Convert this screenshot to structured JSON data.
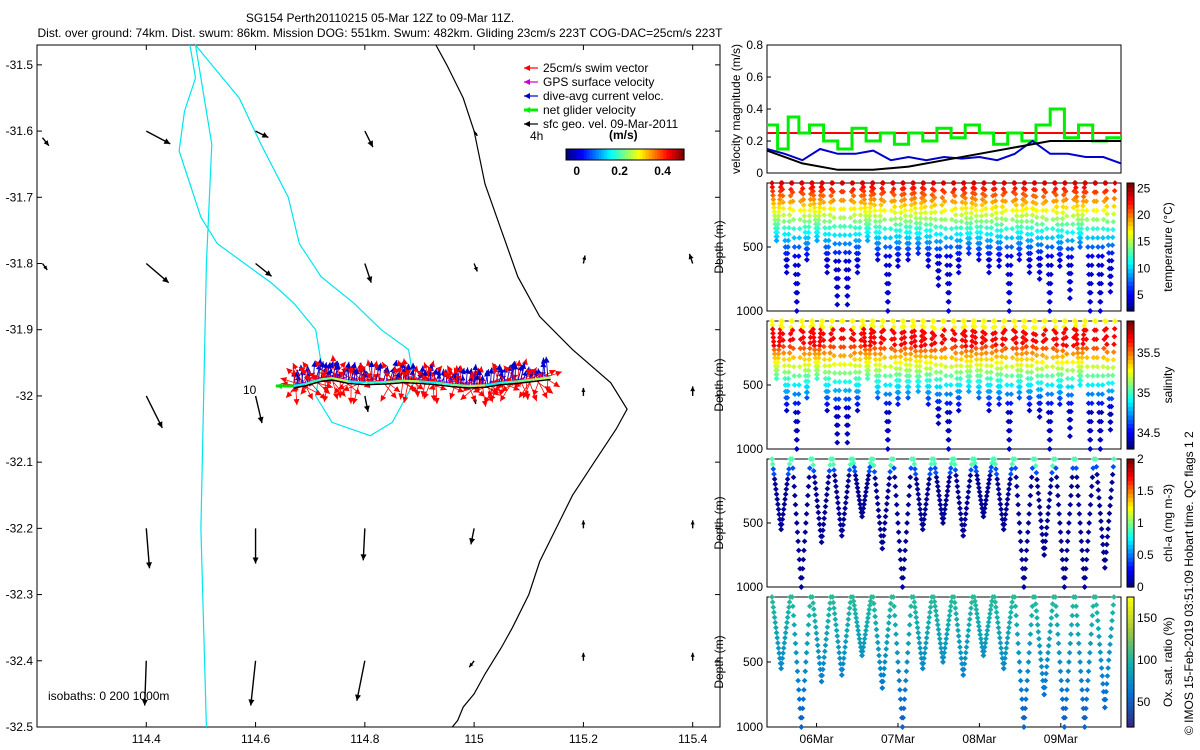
{
  "title_line1": "SG154 Perth20110215 05-Mar 12Z to 09-Mar 11Z.",
  "title_line2": "Dist. over ground: 74km. Dist. swum: 86km. Mission DOG: 551km. Swum: 482km. Gliding 23cm/s 223T COG-DAC=25cm/s 223T",
  "footer_vertical": "© IMOS 15-Feb-2019 03:51:09 Hobart time. QC flags 1  2",
  "chart_data": [
    {
      "type": "map",
      "xlim": [
        114.2,
        115.45
      ],
      "ylim": [
        -32.5,
        -31.47
      ],
      "xticks": [
        "114.4",
        "114.6",
        "114.8",
        "115",
        "115.2",
        "115.4"
      ],
      "xtick_values": [
        114.4,
        114.6,
        114.8,
        115.0,
        115.2,
        115.4
      ],
      "yticks": [
        "-31.5",
        "-31.6",
        "-31.7",
        "-31.8",
        "-31.9",
        "-32",
        "-32.1",
        "-32.2",
        "-32.3",
        "-32.4",
        "-32.5"
      ],
      "ytick_values": [
        -31.5,
        -31.6,
        -31.7,
        -31.8,
        -31.9,
        -32.0,
        -32.1,
        -32.2,
        -32.3,
        -32.4,
        -32.5
      ],
      "legend": [
        {
          "label": "25cm/s swim vector",
          "color": "#ff0000"
        },
        {
          "label": "GPS surface velocity",
          "color": "#cc00cc"
        },
        {
          "label": "dive-avg current veloc.",
          "color": "#0000cc"
        },
        {
          "label": "net glider velocity",
          "color": "#00ee00"
        },
        {
          "label": "sfc geo. vel. 09-Mar-2011",
          "color": "#000000"
        }
      ],
      "colorbar": {
        "title": "(m/s)",
        "ticks": [
          "0",
          "0.2",
          "0.4"
        ],
        "tick_values": [
          0,
          0.2,
          0.4
        ],
        "range": [
          -0.05,
          0.5
        ]
      },
      "label_4h": "4h",
      "label_10": "10",
      "isobaths_text": "isobaths: 0   200   1000m",
      "track": {
        "lon": [
          114.67,
          114.69,
          114.72,
          114.74,
          114.77,
          114.8,
          114.84,
          114.87,
          114.9,
          114.93,
          114.96,
          114.99,
          115.02,
          115.05,
          115.08,
          115.11,
          115.14
        ],
        "lat": [
          -31.985,
          -31.982,
          -31.975,
          -31.973,
          -31.978,
          -31.98,
          -31.979,
          -31.977,
          -31.978,
          -31.98,
          -31.983,
          -31.985,
          -31.984,
          -31.98,
          -31.978,
          -31.975,
          -31.972
        ]
      },
      "geo_vectors": [
        {
          "lon": 114.21,
          "lat": -31.61,
          "u": 0.04,
          "v": -0.05
        },
        {
          "lon": 114.4,
          "lat": -31.6,
          "u": 0.15,
          "v": -0.08
        },
        {
          "lon": 114.6,
          "lat": -31.6,
          "u": 0.08,
          "v": -0.04
        },
        {
          "lon": 114.8,
          "lat": -31.6,
          "u": 0.05,
          "v": -0.1
        },
        {
          "lon": 115.0,
          "lat": -31.6,
          "u": 0.02,
          "v": -0.03
        },
        {
          "lon": 114.21,
          "lat": -31.8,
          "u": 0.03,
          "v": -0.04
        },
        {
          "lon": 114.4,
          "lat": -31.8,
          "u": 0.14,
          "v": -0.12
        },
        {
          "lon": 114.6,
          "lat": -31.8,
          "u": 0.1,
          "v": -0.08
        },
        {
          "lon": 114.8,
          "lat": -31.8,
          "u": 0.04,
          "v": -0.12
        },
        {
          "lon": 115.0,
          "lat": -31.8,
          "u": 0.02,
          "v": -0.05
        },
        {
          "lon": 115.2,
          "lat": -31.8,
          "u": 0.01,
          "v": 0.05
        },
        {
          "lon": 115.4,
          "lat": -31.8,
          "u": -0.02,
          "v": 0.06
        },
        {
          "lon": 114.4,
          "lat": -32.0,
          "u": 0.1,
          "v": -0.2
        },
        {
          "lon": 114.6,
          "lat": -32.0,
          "u": 0.04,
          "v": -0.17
        },
        {
          "lon": 114.8,
          "lat": -32.0,
          "u": 0.02,
          "v": -0.1
        },
        {
          "lon": 115.0,
          "lat": -32.0,
          "u": 0.01,
          "v": -0.05
        },
        {
          "lon": 115.2,
          "lat": -32.0,
          "u": 0.0,
          "v": 0.05
        },
        {
          "lon": 115.4,
          "lat": -32.0,
          "u": 0.0,
          "v": 0.06
        },
        {
          "lon": 114.4,
          "lat": -32.2,
          "u": 0.02,
          "v": -0.25
        },
        {
          "lon": 114.6,
          "lat": -32.2,
          "u": 0.0,
          "v": -0.22
        },
        {
          "lon": 114.8,
          "lat": -32.2,
          "u": -0.01,
          "v": -0.2
        },
        {
          "lon": 115.0,
          "lat": -32.2,
          "u": -0.02,
          "v": -0.1
        },
        {
          "lon": 115.2,
          "lat": -32.2,
          "u": 0.0,
          "v": 0.05
        },
        {
          "lon": 115.4,
          "lat": -32.2,
          "u": 0.0,
          "v": 0.05
        },
        {
          "lon": 114.4,
          "lat": -32.4,
          "u": -0.01,
          "v": -0.28
        },
        {
          "lon": 114.6,
          "lat": -32.4,
          "u": -0.03,
          "v": -0.28
        },
        {
          "lon": 114.8,
          "lat": -32.4,
          "u": -0.05,
          "v": -0.25
        },
        {
          "lon": 115.0,
          "lat": -32.4,
          "u": -0.03,
          "v": -0.04
        },
        {
          "lon": 115.2,
          "lat": -32.4,
          "u": 0.0,
          "v": 0.05
        },
        {
          "lon": 115.4,
          "lat": -32.4,
          "u": 0.0,
          "v": 0.05
        }
      ],
      "isobath_1000m": {
        "lon": [
          114.48,
          114.49,
          114.47,
          114.46,
          114.48,
          114.5,
          114.53,
          114.58,
          114.63,
          114.67,
          114.71,
          114.72,
          114.71,
          114.74,
          114.81,
          114.85,
          114.89,
          114.88,
          114.83,
          114.78,
          114.72,
          114.68,
          114.66,
          114.61,
          114.57,
          114.52,
          114.49,
          114.52,
          114.51,
          114.5,
          114.51
        ],
        "lat": [
          -31.47,
          -31.52,
          -31.57,
          -31.63,
          -31.68,
          -31.73,
          -31.77,
          -31.8,
          -31.83,
          -31.86,
          -31.9,
          -31.95,
          -32.0,
          -32.04,
          -32.06,
          -32.04,
          -31.98,
          -31.93,
          -31.9,
          -31.86,
          -31.82,
          -31.77,
          -31.7,
          -31.62,
          -31.55,
          -31.5,
          -31.47,
          -31.62,
          -31.8,
          -32.2,
          -32.5
        ]
      },
      "isobath_200m": {
        "lon": [
          114.93,
          114.95,
          114.98,
          115.0,
          115.02,
          115.05,
          115.08,
          115.12,
          115.18,
          115.25,
          115.28,
          115.26,
          115.22,
          115.18,
          115.15,
          115.12,
          115.1,
          115.07,
          115.05,
          115.02,
          115.0,
          114.98,
          114.97,
          114.96
        ],
        "lat": [
          -31.47,
          -31.5,
          -31.55,
          -31.6,
          -31.68,
          -31.75,
          -31.82,
          -31.88,
          -31.93,
          -31.98,
          -32.02,
          -32.05,
          -32.1,
          -32.15,
          -32.2,
          -32.25,
          -32.3,
          -32.35,
          -32.38,
          -32.42,
          -32.45,
          -32.47,
          -32.49,
          -32.5
        ]
      }
    },
    {
      "type": "line",
      "ylabel": "velocity magnitude (m/s)",
      "ylim": [
        0,
        0.8
      ],
      "yticks": [
        "0",
        "0.2",
        "0.4",
        "0.6",
        "0.8"
      ],
      "ytick_values": [
        0,
        0.2,
        0.4,
        0.6,
        0.8
      ],
      "xlim": [
        0,
        100
      ],
      "series": [
        {
          "name": "25cm/s swim vector",
          "color": "#ff0000",
          "x": [
            0,
            100
          ],
          "values": [
            0.25,
            0.25
          ]
        },
        {
          "name": "net glider velocity",
          "color": "#00ee00",
          "x": [
            0,
            3,
            3,
            6,
            6,
            9,
            9,
            12,
            12,
            16,
            16,
            20,
            20,
            24,
            24,
            28,
            28,
            32,
            32,
            36,
            36,
            40,
            40,
            44,
            44,
            48,
            48,
            52,
            52,
            56,
            56,
            60,
            60,
            64,
            64,
            68,
            68,
            72,
            72,
            76,
            76,
            80,
            80,
            84,
            84,
            88,
            88,
            92,
            92,
            96,
            96,
            100
          ],
          "values": [
            0.3,
            0.3,
            0.15,
            0.15,
            0.35,
            0.35,
            0.25,
            0.25,
            0.3,
            0.3,
            0.2,
            0.2,
            0.15,
            0.15,
            0.28,
            0.28,
            0.2,
            0.2,
            0.25,
            0.25,
            0.18,
            0.18,
            0.25,
            0.25,
            0.2,
            0.2,
            0.28,
            0.28,
            0.22,
            0.22,
            0.3,
            0.3,
            0.25,
            0.25,
            0.18,
            0.18,
            0.25,
            0.25,
            0.2,
            0.2,
            0.3,
            0.3,
            0.4,
            0.4,
            0.22,
            0.22,
            0.3,
            0.3,
            0.2,
            0.2,
            0.22,
            0.22
          ]
        },
        {
          "name": "dive-avg current veloc.",
          "color": "#0000cc",
          "x": [
            0,
            5,
            10,
            15,
            20,
            25,
            30,
            35,
            40,
            45,
            50,
            55,
            60,
            65,
            70,
            75,
            80,
            85,
            90,
            95,
            100
          ],
          "values": [
            0.15,
            0.12,
            0.08,
            0.15,
            0.12,
            0.12,
            0.14,
            0.08,
            0.1,
            0.08,
            0.1,
            0.09,
            0.1,
            0.08,
            0.12,
            0.2,
            0.12,
            0.12,
            0.1,
            0.1,
            0.06
          ]
        },
        {
          "name": "sfc geo. vel. 09-Mar-2011",
          "color": "#000000",
          "x": [
            0,
            10,
            20,
            30,
            40,
            50,
            60,
            70,
            80,
            90,
            100
          ],
          "values": [
            0.14,
            0.06,
            0.02,
            0.02,
            0.04,
            0.08,
            0.12,
            0.16,
            0.2,
            0.2,
            0.2
          ]
        }
      ]
    },
    {
      "type": "scatter",
      "ylabel": "Depth (m)",
      "colorbar_label": "temperature (°C)",
      "ylim": [
        1000,
        0
      ],
      "yticks": [
        "500",
        "1000"
      ],
      "ytick_values": [
        500,
        1000
      ],
      "clim": [
        2,
        26
      ],
      "colorbar_ticks": [
        "5",
        "10",
        "15",
        "20",
        "25"
      ],
      "colorbar_tick_values": [
        5,
        10,
        15,
        20,
        25
      ],
      "dive_max_depths": [
        450,
        700,
        1000,
        600,
        450,
        700,
        950,
        950,
        700,
        450,
        600,
        1000,
        650,
        600,
        550,
        650,
        800,
        1000,
        700,
        550,
        600,
        700,
        650,
        1000,
        600,
        700,
        750,
        1000,
        650,
        900,
        500,
        1000,
        1000,
        850
      ]
    },
    {
      "type": "scatter",
      "ylabel": "Depth (m)",
      "colorbar_label": "salinity",
      "ylim": [
        1000,
        0
      ],
      "yticks": [
        "500",
        "1000"
      ],
      "ytick_values": [
        500,
        1000
      ],
      "clim": [
        34.3,
        35.9
      ],
      "colorbar_ticks": [
        "34.5",
        "35",
        "35.5"
      ],
      "colorbar_tick_values": [
        34.5,
        35.0,
        35.5
      ],
      "dive_max_depths": [
        450,
        700,
        1000,
        600,
        450,
        700,
        950,
        950,
        700,
        450,
        600,
        1000,
        650,
        600,
        550,
        650,
        800,
        1000,
        700,
        550,
        600,
        700,
        650,
        1000,
        600,
        700,
        750,
        1000,
        650,
        900,
        500,
        1000,
        1000,
        850
      ]
    },
    {
      "type": "scatter",
      "ylabel": "Depth (m)",
      "colorbar_label": "chl-a (mg m-3)",
      "ylim": [
        1000,
        0
      ],
      "yticks": [
        "500",
        "1000"
      ],
      "ytick_values": [
        500,
        1000
      ],
      "clim": [
        0,
        2
      ],
      "colorbar_ticks": [
        "0",
        "0.5",
        "1",
        "1.5",
        "2"
      ],
      "colorbar_tick_values": [
        0,
        0.5,
        1.0,
        1.5,
        2.0
      ],
      "dive_max_depths": [
        550,
        1000,
        650,
        600,
        450,
        700,
        1000,
        550,
        500,
        600,
        450,
        550,
        1000,
        750,
        1000,
        1000,
        850
      ]
    },
    {
      "type": "scatter",
      "ylabel": "Depth (m)",
      "colorbar_label": "Ox. sat. ratio (%)",
      "ylim": [
        1000,
        0
      ],
      "yticks": [
        "500",
        "1000"
      ],
      "ytick_values": [
        500,
        1000
      ],
      "clim": [
        20,
        175
      ],
      "colorbar_ticks": [
        "50",
        "100",
        "150"
      ],
      "colorbar_tick_values": [
        50,
        100,
        150
      ],
      "xticks": [
        "06Mar",
        "07Mar",
        "08Mar",
        "09Mar"
      ],
      "xtick_values": [
        14,
        37,
        60,
        83
      ],
      "dive_max_depths": [
        550,
        1000,
        650,
        600,
        450,
        700,
        1000,
        550,
        500,
        600,
        450,
        550,
        1000,
        750,
        1000,
        1000,
        850
      ]
    }
  ]
}
